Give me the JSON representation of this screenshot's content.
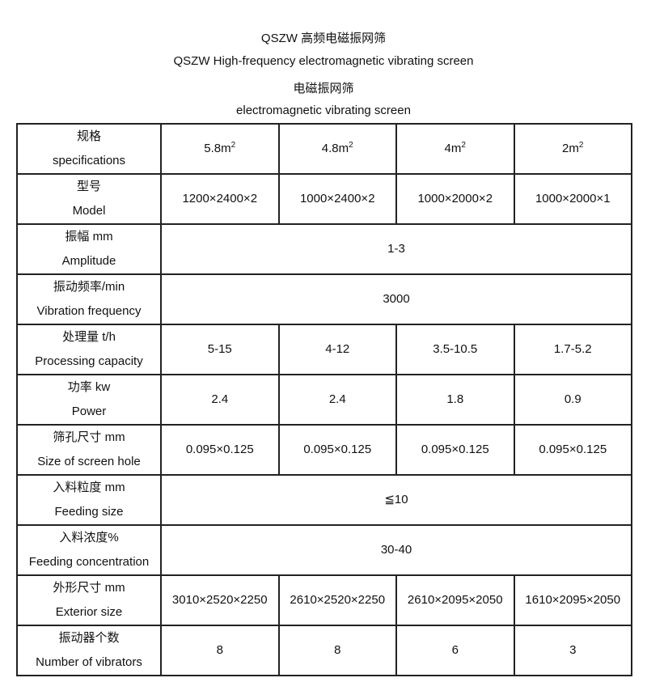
{
  "titles": [
    "QSZW 高频电磁振网筛",
    "QSZW High-frequency electromagnetic vibrating screen",
    "电磁振网筛",
    "electromagnetic vibrating screen"
  ],
  "rows": [
    {
      "zh": "规格",
      "en": "specifications",
      "cells": [
        "5.8m",
        "4.8m",
        "4m",
        "2m"
      ],
      "sup": "2"
    },
    {
      "zh": "型号",
      "en": "Model",
      "cells": [
        "1200×2400×2",
        "1000×2400×2",
        "1000×2000×2",
        "1000×2000×1"
      ]
    },
    {
      "zh": "振幅 mm",
      "en": "Amplitude",
      "span": "1-3"
    },
    {
      "zh": "振动频率/min",
      "en": "Vibration frequency",
      "span": "3000"
    },
    {
      "zh": "处理量 t/h",
      "en": "Processing capacity",
      "cells": [
        "5-15",
        "4-12",
        "3.5-10.5",
        "1.7-5.2"
      ]
    },
    {
      "zh": "功率 kw",
      "en": "Power",
      "cells": [
        "2.4",
        "2.4",
        "1.8",
        "0.9"
      ]
    },
    {
      "zh": "筛孔尺寸 mm",
      "en": "Size of screen hole",
      "cells": [
        "0.095×0.125",
        "0.095×0.125",
        "0.095×0.125",
        "0.095×0.125"
      ]
    },
    {
      "zh": "入料粒度 mm",
      "en": "Feeding size",
      "span": "≦10"
    },
    {
      "zh": "入料浓度%",
      "en": "Feeding concentration",
      "span": "30-40"
    },
    {
      "zh": "外形尺寸 mm",
      "en": "Exterior size",
      "cells": [
        "3010×2520×2250",
        "2610×2520×2250",
        "2610×2095×2050",
        "1610×2095×2050"
      ]
    },
    {
      "zh": "振动器个数",
      "en": "Number of vibrators",
      "cells": [
        "8",
        "8",
        "6",
        "3"
      ]
    }
  ]
}
